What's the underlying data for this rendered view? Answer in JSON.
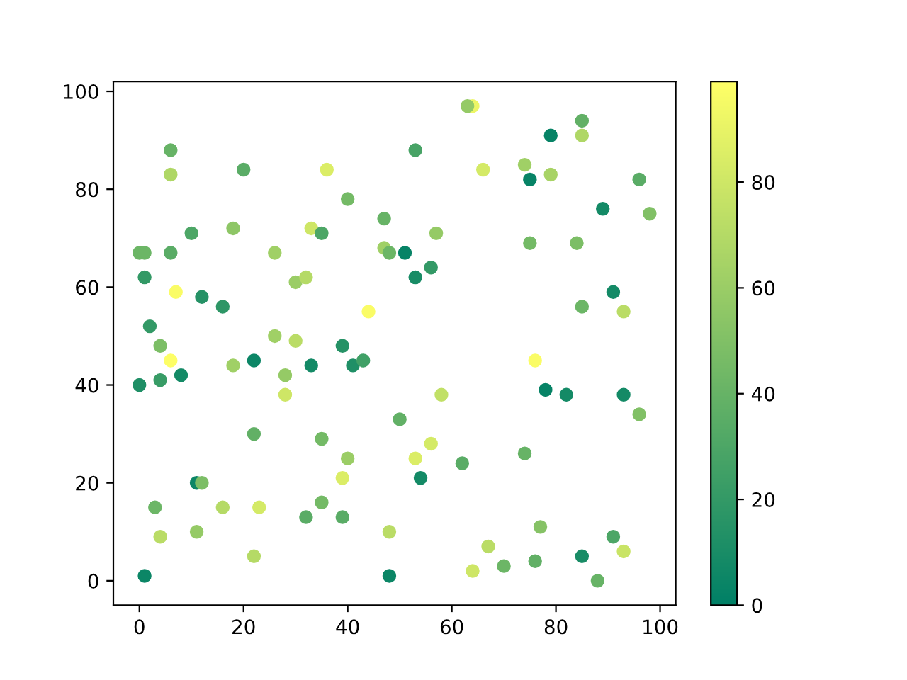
{
  "chart_data": {
    "type": "scatter",
    "marker": "circle",
    "x": [
      6,
      6,
      20,
      36,
      40,
      47,
      10,
      18,
      33,
      35,
      0,
      1,
      6,
      26,
      47,
      48,
      1,
      7,
      12,
      16,
      30,
      32,
      44,
      2,
      64,
      63,
      85,
      79,
      85,
      53,
      66,
      74,
      75,
      79,
      96,
      89,
      98,
      57,
      51,
      56,
      53,
      75,
      84,
      91,
      85,
      93,
      4,
      6,
      0,
      4,
      8,
      26,
      30,
      18,
      22,
      28,
      28,
      33,
      39,
      41,
      43,
      22,
      35,
      40,
      39,
      11,
      12,
      3,
      16,
      23,
      35,
      32,
      39,
      4,
      11,
      48,
      22,
      1,
      48,
      50,
      76,
      78,
      82,
      93,
      96,
      58,
      56,
      53,
      54,
      62,
      74,
      77,
      91,
      93,
      67,
      64,
      70,
      76,
      85,
      88
    ],
    "values": [
      88,
      83,
      84,
      84,
      78,
      74,
      71,
      72,
      72,
      71,
      67,
      67,
      67,
      67,
      68,
      67,
      62,
      59,
      58,
      56,
      61,
      62,
      55,
      52,
      97,
      97,
      94,
      91,
      91,
      88,
      84,
      85,
      82,
      83,
      82,
      76,
      75,
      71,
      67,
      64,
      62,
      69,
      69,
      59,
      56,
      55,
      48,
      45,
      40,
      41,
      42,
      50,
      49,
      44,
      45,
      42,
      38,
      44,
      48,
      44,
      45,
      30,
      29,
      25,
      21,
      20,
      20,
      15,
      15,
      15,
      16,
      13,
      13,
      9,
      10,
      10,
      5,
      1,
      1,
      33,
      45,
      39,
      38,
      38,
      34,
      38,
      28,
      25,
      21,
      24,
      26,
      11,
      9,
      6,
      7,
      2,
      3,
      4,
      5,
      0
    ],
    "cvalues": [
      40,
      68,
      35,
      85,
      45,
      40,
      30,
      55,
      80,
      30,
      42,
      42,
      35,
      62,
      62,
      42,
      20,
      97,
      15,
      18,
      60,
      70,
      97,
      20,
      92,
      58,
      38,
      3,
      68,
      28,
      82,
      62,
      3,
      65,
      35,
      8,
      50,
      58,
      3,
      20,
      10,
      45,
      48,
      8,
      42,
      72,
      48,
      98,
      12,
      22,
      8,
      62,
      72,
      62,
      5,
      58,
      80,
      8,
      15,
      12,
      25,
      38,
      45,
      60,
      85,
      5,
      48,
      42,
      70,
      82,
      45,
      35,
      35,
      72,
      58,
      72,
      70,
      5,
      5,
      38,
      97,
      3,
      8,
      8,
      50,
      75,
      82,
      85,
      8,
      35,
      40,
      52,
      30,
      78,
      72,
      80,
      42,
      38,
      10,
      40
    ],
    "clim": [
      0,
      99
    ],
    "cticks": [
      0,
      20,
      40,
      60,
      80
    ],
    "xlim": [
      -5,
      103
    ],
    "xticks": [
      0,
      20,
      40,
      60,
      80,
      100
    ],
    "ylim": [
      -5,
      102
    ],
    "yticks": [
      0,
      20,
      40,
      60,
      80,
      100
    ]
  }
}
